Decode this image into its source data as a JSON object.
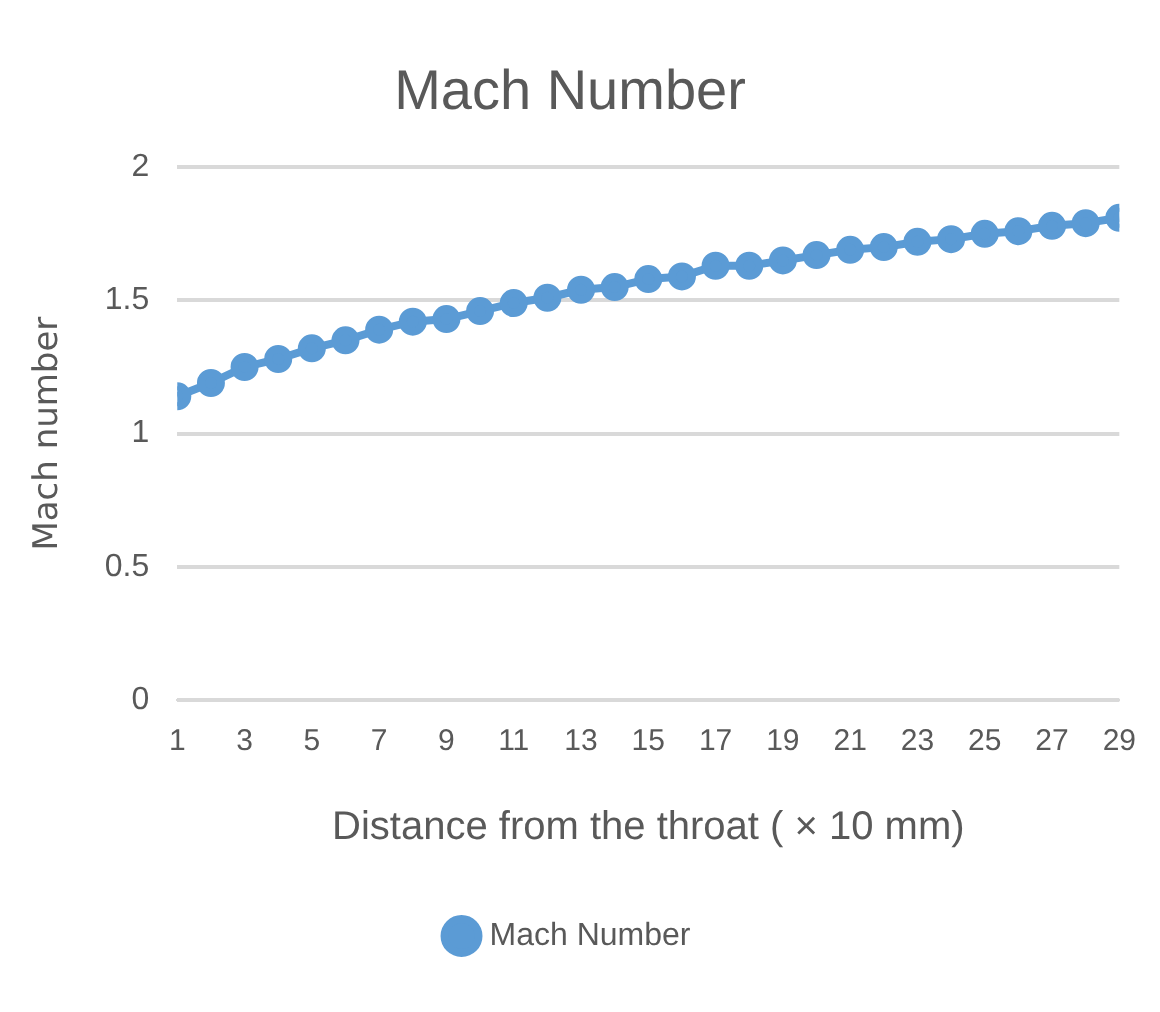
{
  "chart_data": {
    "type": "line",
    "title": "Mach Number",
    "xlabel": "Distance from the throat ( × 10 mm)",
    "ylabel": "Mach number",
    "x": [
      1,
      2,
      3,
      4,
      5,
      6,
      7,
      8,
      9,
      10,
      11,
      12,
      13,
      14,
      15,
      16,
      17,
      18,
      19,
      20,
      21,
      22,
      23,
      24,
      25,
      26,
      27,
      28,
      29
    ],
    "xlim": [
      1,
      29
    ],
    "xticks": [
      1,
      3,
      5,
      7,
      9,
      11,
      13,
      15,
      17,
      19,
      21,
      23,
      25,
      27,
      29
    ],
    "series": [
      {
        "name": "Mach Number",
        "color": "#5b9bd5",
        "values": [
          1.14,
          1.19,
          1.25,
          1.28,
          1.32,
          1.35,
          1.39,
          1.42,
          1.43,
          1.46,
          1.49,
          1.51,
          1.54,
          1.55,
          1.58,
          1.59,
          1.63,
          1.63,
          1.65,
          1.67,
          1.69,
          1.7,
          1.72,
          1.73,
          1.75,
          1.76,
          1.78,
          1.79,
          1.81
        ]
      }
    ],
    "ylim": [
      0,
      2
    ],
    "yticks": [
      0,
      0.5,
      1,
      1.5,
      2
    ],
    "grid": "y",
    "legend": "bottom",
    "marker": "circle",
    "line_style": "solid"
  }
}
